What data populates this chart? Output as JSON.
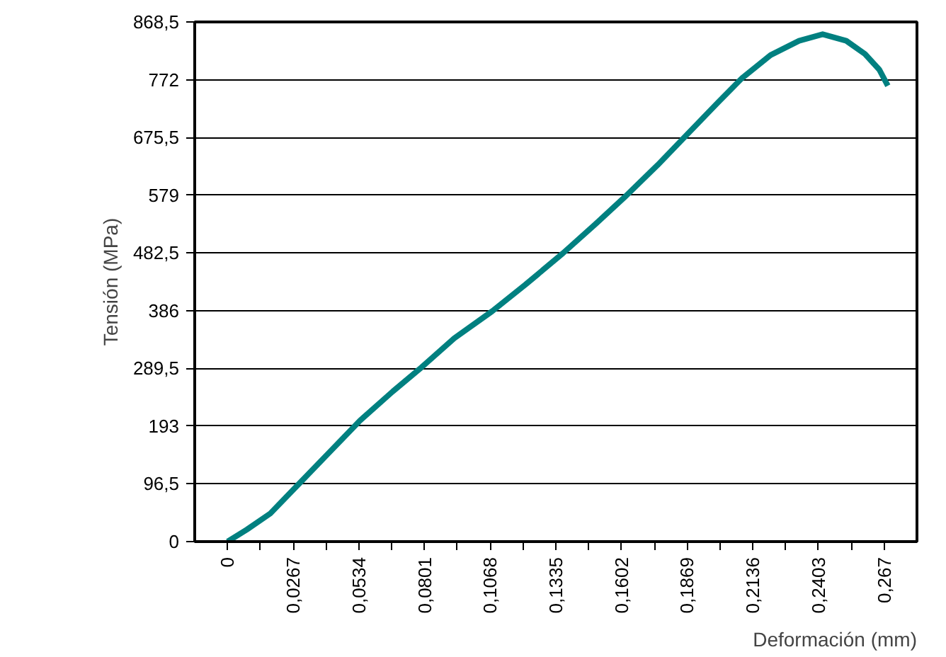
{
  "chart_data": {
    "type": "line",
    "xlabel": "Deformación (mm)",
    "ylabel": "Tensión (MPa)",
    "x": [
      0,
      0.0078,
      0.0174,
      0.0289,
      0.0404,
      0.0538,
      0.0672,
      0.0788,
      0.0922,
      0.1076,
      0.121,
      0.1364,
      0.1497,
      0.1613,
      0.1748,
      0.1863,
      0.1997,
      0.2093,
      0.2208,
      0.2324,
      0.242,
      0.2516,
      0.2592,
      0.265,
      0.2685
    ],
    "series": [
      {
        "color": "#008080",
        "values": [
          0,
          20,
          47,
          96,
          145,
          202,
          251,
          291,
          340,
          385,
          429,
          482,
          531,
          575,
          629,
          678,
          735,
          775,
          813,
          837,
          848,
          837,
          815,
          789,
          762
        ]
      }
    ],
    "xlim": [
      -0.01335,
      0.28035
    ],
    "xticks": [
      {
        "value": 0,
        "label": "0"
      },
      {
        "value": 0.0267,
        "label": "0,0267"
      },
      {
        "value": 0.0534,
        "label": "0,0534"
      },
      {
        "value": 0.0801,
        "label": "0,0801"
      },
      {
        "value": 0.1068,
        "label": "0,1068"
      },
      {
        "value": 0.1335,
        "label": "0,1335"
      },
      {
        "value": 0.1602,
        "label": "0,1602"
      },
      {
        "value": 0.1869,
        "label": "0,1869"
      },
      {
        "value": 0.2136,
        "label": "0,2136"
      },
      {
        "value": 0.2403,
        "label": "0,2403"
      },
      {
        "value": 0.267,
        "label": "0,267"
      },
      {
        "value": 0.01335,
        "label": null
      },
      {
        "value": 0.04005,
        "label": null
      },
      {
        "value": 0.06675,
        "label": null
      },
      {
        "value": 0.09345,
        "label": null
      },
      {
        "value": 0.12015,
        "label": null
      },
      {
        "value": 0.14685,
        "label": null
      },
      {
        "value": 0.17355,
        "label": null
      },
      {
        "value": 0.20025,
        "label": null
      },
      {
        "value": 0.22695,
        "label": null
      },
      {
        "value": 0.25365,
        "label": null
      }
    ],
    "ylim": [
      0,
      868.5
    ],
    "yticks": [
      0,
      {
        "value": 96.5,
        "label": "96,5"
      },
      193,
      {
        "value": 289.5,
        "label": "289,5"
      },
      386,
      {
        "value": 482.5,
        "label": "482,5"
      },
      579,
      {
        "value": 675.5,
        "label": "675,5"
      },
      772,
      {
        "value": 868.5,
        "label": "868,5"
      }
    ],
    "grid": "y",
    "marker": "none",
    "line_style": "solid"
  }
}
